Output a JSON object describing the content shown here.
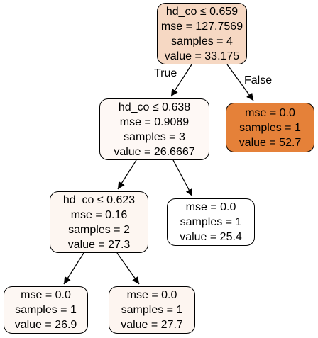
{
  "edge_labels": {
    "true": "True",
    "false": "False"
  },
  "nodes": [
    {
      "id": "n0",
      "lines": [
        "hd_co ≤ 0.659",
        "mse = 127.7569",
        "samples = 4",
        "value = 33.175"
      ],
      "fill": "#f6d8c3"
    },
    {
      "id": "n1",
      "lines": [
        "hd_co ≤ 0.638",
        "mse = 0.9089",
        "samples = 3",
        "value = 26.6667"
      ],
      "fill": "#fef8f5"
    },
    {
      "id": "n2",
      "lines": [
        "mse = 0.0",
        "samples = 1",
        "value = 52.7"
      ],
      "fill": "#e58139"
    },
    {
      "id": "n3",
      "lines": [
        "hd_co ≤ 0.623",
        "mse = 0.16",
        "samples = 2",
        "value = 27.3"
      ],
      "fill": "#fdf6f1"
    },
    {
      "id": "n4",
      "lines": [
        "mse = 0.0",
        "samples = 1",
        "value = 25.4"
      ],
      "fill": "#ffffff"
    },
    {
      "id": "n5",
      "lines": [
        "mse = 0.0",
        "samples = 1",
        "value = 26.9"
      ],
      "fill": "#fdf7f3"
    },
    {
      "id": "n6",
      "lines": [
        "mse = 0.0",
        "samples = 1",
        "value = 27.7"
      ],
      "fill": "#fdf5f0"
    }
  ],
  "edges": [
    {
      "from": "n0",
      "to": "n1"
    },
    {
      "from": "n0",
      "to": "n2"
    },
    {
      "from": "n1",
      "to": "n3"
    },
    {
      "from": "n1",
      "to": "n4"
    },
    {
      "from": "n3",
      "to": "n5"
    },
    {
      "from": "n3",
      "to": "n6"
    }
  ]
}
